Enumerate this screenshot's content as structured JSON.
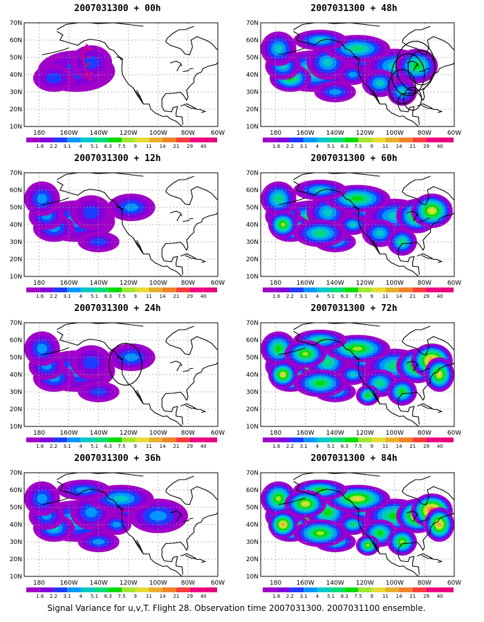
{
  "panels": [
    {
      "title": "2007031300 + 00h",
      "level": 1,
      "circles": [],
      "dots": true
    },
    {
      "title": "2007031300 + 48h",
      "level": 4,
      "circles": [
        [
          -86,
          45,
          13
        ],
        [
          -91,
          40,
          11
        ],
        [
          -82,
          44,
          9
        ],
        [
          -95,
          33,
          9
        ],
        [
          -88,
          26,
          6
        ]
      ],
      "dots": false
    },
    {
      "title": "2007031300 + 12h",
      "level": 2,
      "circles": [],
      "dots": false
    },
    {
      "title": "2007031300 + 60h",
      "level": 5,
      "circles": [],
      "dots": false
    },
    {
      "title": "2007031300 + 24h",
      "level": 2,
      "circles": [
        [
          -122,
          46,
          11
        ]
      ],
      "dots": false
    },
    {
      "title": "2007031300 + 72h",
      "level": 6,
      "circles": [],
      "dots": false
    },
    {
      "title": "2007031300 + 36h",
      "level": 3,
      "circles": [],
      "dots": false
    },
    {
      "title": "2007031300 + 84h",
      "level": 7,
      "circles": [],
      "dots": false
    }
  ],
  "map_extent": {
    "lon_min": 170,
    "lon_max": 300,
    "lat_min": 10,
    "lat_max": 70
  },
  "lat_labels": [
    "70N",
    "60N",
    "50N",
    "40N",
    "30N",
    "20N",
    "10N"
  ],
  "lon_labels": [
    "180",
    "160W",
    "140W",
    "120W",
    "100W",
    "80W",
    "60W"
  ],
  "colorbar": {
    "labels": [
      "1.6",
      "2.2",
      "3.1",
      "4",
      "5.1",
      "6.3",
      "7.5",
      "9",
      "11",
      "14",
      "21",
      "29",
      "40"
    ],
    "colors": [
      "#a000c8",
      "#8200dc",
      "#1e3cff",
      "#0096ff",
      "#00c8c8",
      "#00dc78",
      "#00dc00",
      "#a0e632",
      "#e6dc32",
      "#e6af2d",
      "#f08228",
      "#fa3c3c",
      "#f00082",
      "#e6007d"
    ]
  },
  "caption": "Signal Variance for u,v,T. Flight 28. Observation time 2007031300. 2007031100 ensemble.",
  "dot_color": "#ff0050"
}
